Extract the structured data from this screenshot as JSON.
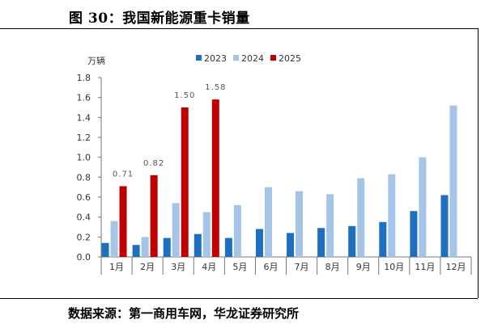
{
  "figure": {
    "title": "图 30：我国新能源重卡销量",
    "source": "数据来源：第一商用车网，华龙证券研究所"
  },
  "chart_data": {
    "type": "bar",
    "categories": [
      "1月",
      "2月",
      "3月",
      "4月",
      "5月",
      "6月",
      "7月",
      "8月",
      "9月",
      "10月",
      "11月",
      "12月"
    ],
    "series": [
      {
        "name": "2023",
        "color": "#1f6fc0",
        "values": [
          0.14,
          0.12,
          0.19,
          0.23,
          0.19,
          0.28,
          0.24,
          0.29,
          0.31,
          0.35,
          0.46,
          0.62
        ]
      },
      {
        "name": "2024",
        "color": "#a5c5e8",
        "values": [
          0.36,
          0.2,
          0.54,
          0.45,
          0.52,
          0.7,
          0.66,
          0.63,
          0.79,
          0.83,
          1.0,
          1.52
        ]
      },
      {
        "name": "2025",
        "color": "#c00000",
        "values": [
          0.71,
          0.82,
          1.5,
          1.58,
          null,
          null,
          null,
          null,
          null,
          null,
          null,
          null
        ]
      }
    ],
    "data_labels": {
      "series": "2025",
      "texts": [
        "0.71",
        "0.82",
        "1.50",
        "1.58"
      ]
    },
    "yunit": "万辆",
    "ylim": [
      0,
      1.8
    ],
    "yticks": [
      "0.0",
      "0.2",
      "0.4",
      "0.6",
      "0.8",
      "1.0",
      "1.2",
      "1.4",
      "1.6",
      "1.8"
    ],
    "grid": false,
    "legend_position": "top-right"
  }
}
